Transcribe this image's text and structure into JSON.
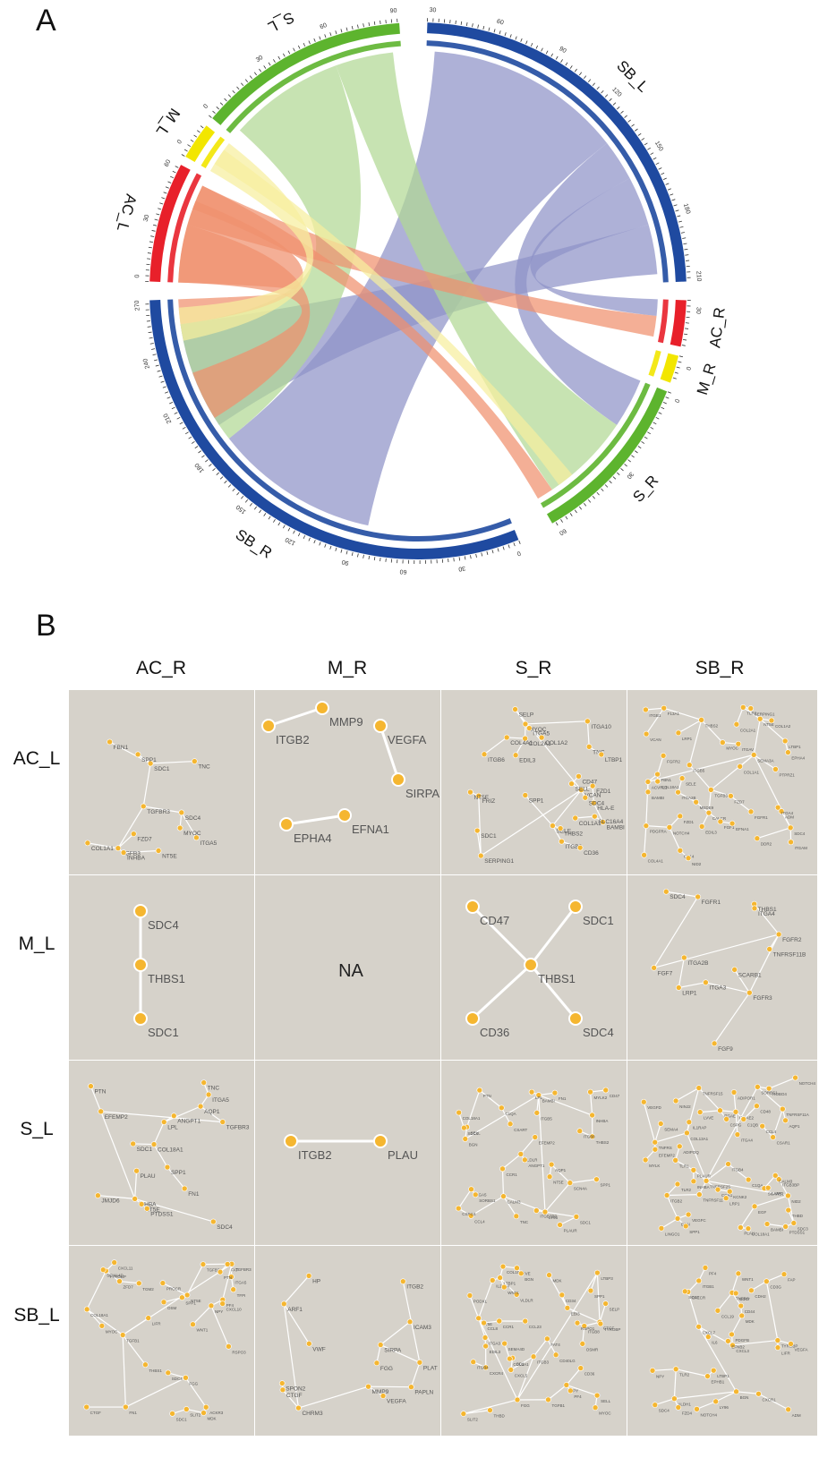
{
  "panel_a": {
    "letter": "A",
    "segments": [
      {
        "label": "SB_L",
        "color": "#1f4aa0",
        "ticks": [
          "30",
          "60",
          "90",
          "120",
          "150",
          "180",
          "210"
        ]
      },
      {
        "label": "AC_R",
        "color": "#e8202a",
        "ticks": [
          "30"
        ]
      },
      {
        "label": "M_R",
        "color": "#f2e600",
        "ticks": [
          "0"
        ]
      },
      {
        "label": "S_R",
        "color": "#5db42e",
        "ticks": [
          "0",
          "30",
          "60"
        ]
      },
      {
        "label": "SB_R",
        "color": "#1f4aa0",
        "ticks": [
          "0",
          "30",
          "60",
          "90",
          "120",
          "150",
          "180",
          "210",
          "240",
          "270"
        ]
      },
      {
        "label": "AC_L",
        "color": "#e8202a",
        "ticks": [
          "0",
          "30",
          "60"
        ]
      },
      {
        "label": "M_L",
        "color": "#f2e600",
        "ticks": [
          "0"
        ]
      },
      {
        "label": "S_L",
        "color": "#5db42e",
        "ticks": [
          "0",
          "30",
          "60",
          "90"
        ]
      }
    ],
    "ribbon_colors": {
      "SB_L": "#8f93c8",
      "AC_L": "#f0906e",
      "M_L": "#f6ee9e",
      "S_L": "#b2d894"
    }
  },
  "panel_b": {
    "letter": "B",
    "columns": [
      "AC_R",
      "M_R",
      "S_R",
      "SB_R"
    ],
    "rows": [
      "AC_L",
      "M_L",
      "S_L",
      "SB_L"
    ],
    "na_text": "NA",
    "cells": [
      {
        "nodes": [
          "TGFB3",
          "TGFBR3",
          "INHBA",
          "SDC1",
          "NT5E",
          "TNC",
          "SDC4",
          "COL1A1",
          "ITGA5",
          "FBN1",
          "FZD7",
          "MYOC",
          "SPP1"
        ]
      },
      {
        "nodes": [
          "MMP9",
          "ITGB2",
          "VEGFA",
          "SIRPA",
          "EPHA4",
          "EFNA1"
        ]
      },
      {
        "nodes": [
          "FZD1",
          "VCAN",
          "SELP",
          "SERPING1",
          "MYOC",
          "SELL",
          "ITGA10",
          "SELE",
          "COL2A1",
          "COL4A1",
          "ITGB8",
          "CD47",
          "HLA-E",
          "BAMBI",
          "FRIZ",
          "SLC16A4",
          "COL1A1",
          "CD36",
          "THBS2",
          "ITGA5",
          "SDC1",
          "COL1A2",
          "EDIL3",
          "SPP1",
          "TNC",
          "SDC4",
          "NT5E",
          "LTBP1",
          "ITGB6"
        ]
      },
      {
        "nodes": [
          "SEMA3A",
          "ACVRL1",
          "TGFB3",
          "PDGFRA",
          "CALCR",
          "NT5E",
          "SDC4",
          "LTBP1",
          "ITGB5",
          "ADM",
          "PTPRZ1",
          "EDIL3",
          "NOTCH4",
          "FZD7",
          "MEDE9",
          "FBN1",
          "THBS2",
          "MYOC",
          "COL4A1",
          "ITGAV",
          "CD14",
          "FZD1",
          "COL1A1",
          "COL1A2",
          "F13A1",
          "DDR2",
          "TLR2",
          "VCAN",
          "NID2",
          "ITGB1",
          "ITGA2B",
          "COL2A1",
          "SELE",
          "COL18A1",
          "BAMBI",
          "FGFR1",
          "EPHA4",
          "ITGA4",
          "SERPING1",
          "FGFR2",
          "FGF1",
          "EFNA1",
          "ITGAM",
          "LRP1"
        ]
      },
      {
        "nodes": [
          "SDC4",
          "THBS1",
          "SDC1"
        ]
      },
      {
        "nodes": []
      },
      {
        "nodes": [
          "CD47",
          "SDC1",
          "THBS1",
          "CD36",
          "SDC4"
        ]
      },
      {
        "nodes": [
          "FGF7",
          "FGFR2",
          "FGFR3",
          "FGF9",
          "FGFR1",
          "TNFRSF11B",
          "ITGA3",
          "SDC4",
          "THBS1",
          "LRP1",
          "SCARB1",
          "ITGA4",
          "ITGA2B"
        ]
      },
      {
        "nodes": [
          "TGFBR3",
          "EFEMP2",
          "AQP1",
          "INHBA",
          "PLAU",
          "SDC4",
          "LPL",
          "COL18A1",
          "ANGPT1",
          "ITGA5",
          "TNC",
          "SDC1",
          "SPP1",
          "FN1",
          "NT5E",
          "PTN",
          "PTDSS1",
          "JMJD6"
        ]
      },
      {
        "nodes": [
          "ITGB2",
          "PLAU"
        ]
      },
      {
        "nodes": [
          "LY96",
          "BAMBI",
          "INHBA",
          "BGN",
          "CALM3",
          "MYLK2",
          "SCN4A",
          "SELL",
          "CCR1",
          "CD47",
          "PTN",
          "LPL",
          "CCL4",
          "THBS2",
          "SDC1",
          "VLDLR",
          "AQP1",
          "EFEMP2",
          "C1QA",
          "PLAUR",
          "CSPG4",
          "SDC4",
          "TNC",
          "NT5E",
          "COL18A1",
          "ITGA5",
          "FN1",
          "ITGB5",
          "SORBS1",
          "ANGPT1",
          "SPP1",
          "ITGB8",
          "CSART",
          "ITGB3BP"
        ]
      },
      {
        "nodes": [
          "TNFRSF25",
          "SORBS1",
          "NID2",
          "TNFRSF11A",
          "COL13A1",
          "ITGB3BP",
          "CSAR1",
          "TNFRSF11",
          "ITGB2",
          "ITGB4",
          "PLAUR",
          "TNFRS",
          "TNFRSF15",
          "ITGAE",
          "SDC3",
          "ITGAE2",
          "BGN",
          "TLR2",
          "ITGA4",
          "ROBO4",
          "LINGO1",
          "EGF",
          "PLAU",
          "VEGFD",
          "SPP1",
          "NOTCH4",
          "TLR1",
          "ADIPOR1",
          "ADIPOQ",
          "EFEMP2",
          "MYLK",
          "C1QA",
          "AQP1",
          "CALM3",
          "COL18A1",
          "SEMA4",
          "CCR1",
          "KCNK2",
          "THBD",
          "NINJ2",
          "C1QB",
          "CCL4",
          "LVVE",
          "VEGFC",
          "PTDSS1",
          "IL1RAP",
          "BAMBI",
          "CD48",
          "INHBA",
          "LRP1",
          "CSPG",
          "SCARB1",
          "LAMC"
        ]
      },
      {
        "nodes": [
          "TGFB1",
          "TGFBR3",
          "COL18A1",
          "TGFB3",
          "FN1",
          "PF4",
          "ITGA5",
          "NT5E",
          "CTGF",
          "TYROBP",
          "PROCR",
          "FGG",
          "SPP1",
          "SEMA4D",
          "CXCL11",
          "ACKR3",
          "NPY",
          "FAP",
          "RSPO3",
          "TFPI",
          "ZFD7",
          "LIFR",
          "PTN",
          "THBS1",
          "SDC4",
          "CXCL10",
          "MDK",
          "SLIT2",
          "TGM2",
          "WNT1",
          "MYOC",
          "SDC1",
          "OSM"
        ]
      },
      {
        "nodes": [
          "ARF1",
          "CHRM3",
          "CTGF",
          "MMP9",
          "VWF",
          "PAPLN",
          "SPON2",
          "PLAT",
          "ITGB2",
          "SIRPA",
          "FGG",
          "HP",
          "ICAM3",
          "VEGFA"
        ]
      },
      {
        "nodes": [
          "LTBP3",
          "FGG",
          "NT5E",
          "ITGB3",
          "IL27RA",
          "CTGF",
          "ITGA3",
          "LTBP1",
          "EBI3",
          "COL18A1",
          "SPP1",
          "ITGB8",
          "EDIL3",
          "CXCL5",
          "MDK",
          "CCL8",
          "SLIT2",
          "CD1",
          "TGFB1",
          "CCR1",
          "CCL23",
          "RSPO1",
          "VLDLR",
          "CXCR4",
          "PODXL",
          "NPY",
          "SELL",
          "CD36",
          "FAT4",
          "SELP",
          "WNT1",
          "COL2A1",
          "CD34",
          "MYOC",
          "SEMA4D",
          "LYVE",
          "TYROBP",
          "OSMR",
          "BGN",
          "PF4",
          "THBD",
          "ITGB4",
          "CD40LG"
        ]
      },
      {
        "nodes": [
          "CXCR1",
          "BGN",
          "ALDH1",
          "CXCL7",
          "TLR2",
          "ADM",
          "CALCR",
          "CXCL3",
          "PDGFB",
          "TYROBP",
          "NPY",
          "EPHB1",
          "LTBP1",
          "VEGFA",
          "CD3G",
          "ITGB1",
          "MDK",
          "SDC4",
          "FAP",
          "IL6",
          "EFNB2",
          "LY96",
          "CD44",
          "TNFRS",
          "NOTCH4",
          "WNT1",
          "CCL19",
          "LIFR",
          "CDH2",
          "CD47",
          "PF4",
          "FZD4",
          "SOST"
        ]
      }
    ]
  }
}
